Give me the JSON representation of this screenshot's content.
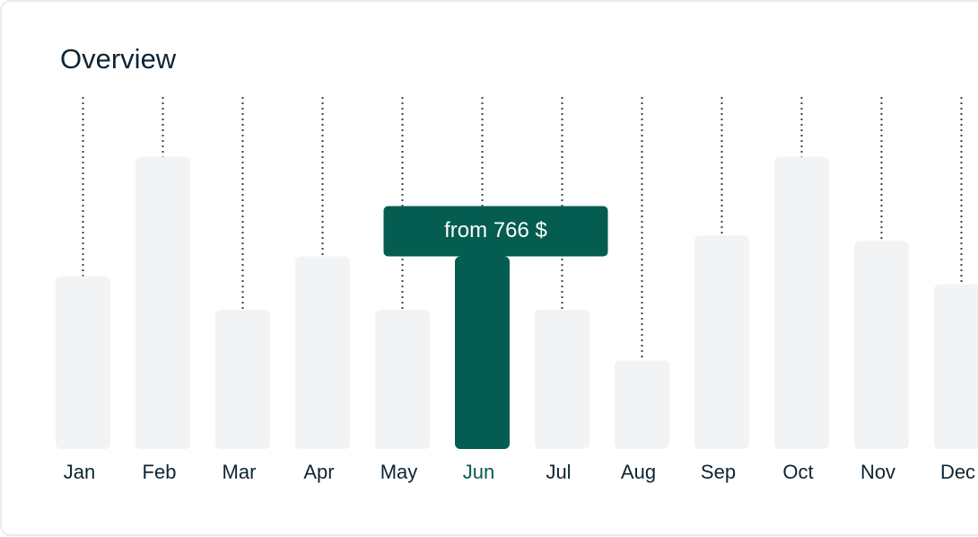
{
  "chart_data": {
    "type": "bar",
    "title": "Overview",
    "categories": [
      "Jan",
      "Feb",
      "Mar",
      "Apr",
      "May",
      "Jun",
      "Jul",
      "Aug",
      "Sep",
      "Oct",
      "Nov",
      "Dec"
    ],
    "values": [
      687,
      1162,
      554,
      766,
      554,
      766,
      554,
      352,
      849,
      1162,
      827,
      655
    ],
    "value_labels": [
      null,
      null,
      null,
      null,
      null,
      "from 766 $",
      null,
      null,
      null,
      null,
      null,
      null
    ],
    "ylim": [
      0,
      1400
    ],
    "color": "#f2f3f5",
    "highlight_color": "#045d50"
  }
}
